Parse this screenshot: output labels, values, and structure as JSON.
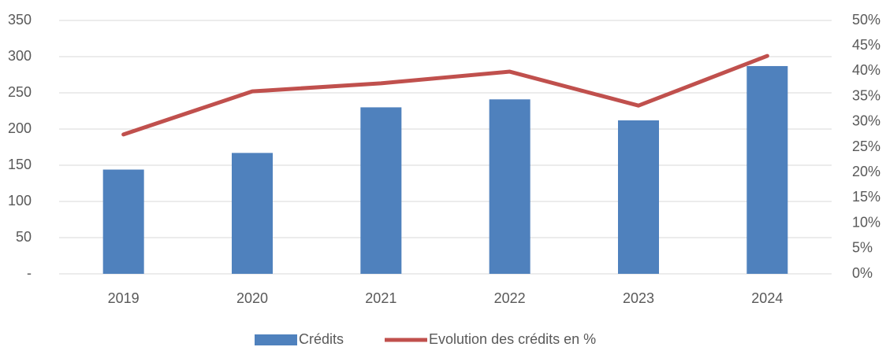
{
  "chart_data": {
    "type": "bar-line",
    "categories": [
      "2019",
      "2020",
      "2021",
      "2022",
      "2023",
      "2024"
    ],
    "series": [
      {
        "name": "Crédits",
        "type": "bar",
        "color": "#4f81bd",
        "values": [
          144,
          167,
          230,
          241,
          212,
          287
        ]
      },
      {
        "name": "Evolution des crédits en %",
        "type": "line",
        "axis": "y2",
        "color": "#c0504d",
        "values": [
          27.5,
          36.0,
          37.6,
          39.9,
          33.2,
          43.0
        ]
      }
    ],
    "ylim": [
      0,
      350
    ],
    "yticks": [
      {
        "value": 0,
        "label": "-"
      },
      50,
      100,
      150,
      200,
      250,
      300,
      350
    ],
    "y2lim": [
      0,
      50
    ],
    "y2ticks": [
      {
        "value": 0,
        "label": "0%"
      },
      {
        "value": 5,
        "label": "5%"
      },
      {
        "value": 10,
        "label": "10%"
      },
      {
        "value": 15,
        "label": "15%"
      },
      {
        "value": 20,
        "label": "20%"
      },
      {
        "value": 25,
        "label": "25%"
      },
      {
        "value": 30,
        "label": "30%"
      },
      {
        "value": 35,
        "label": "35%"
      },
      {
        "value": 40,
        "label": "40%"
      },
      {
        "value": 45,
        "label": "45%"
      },
      {
        "value": 50,
        "label": "50%"
      }
    ],
    "grid": true,
    "legend": "bottom"
  }
}
